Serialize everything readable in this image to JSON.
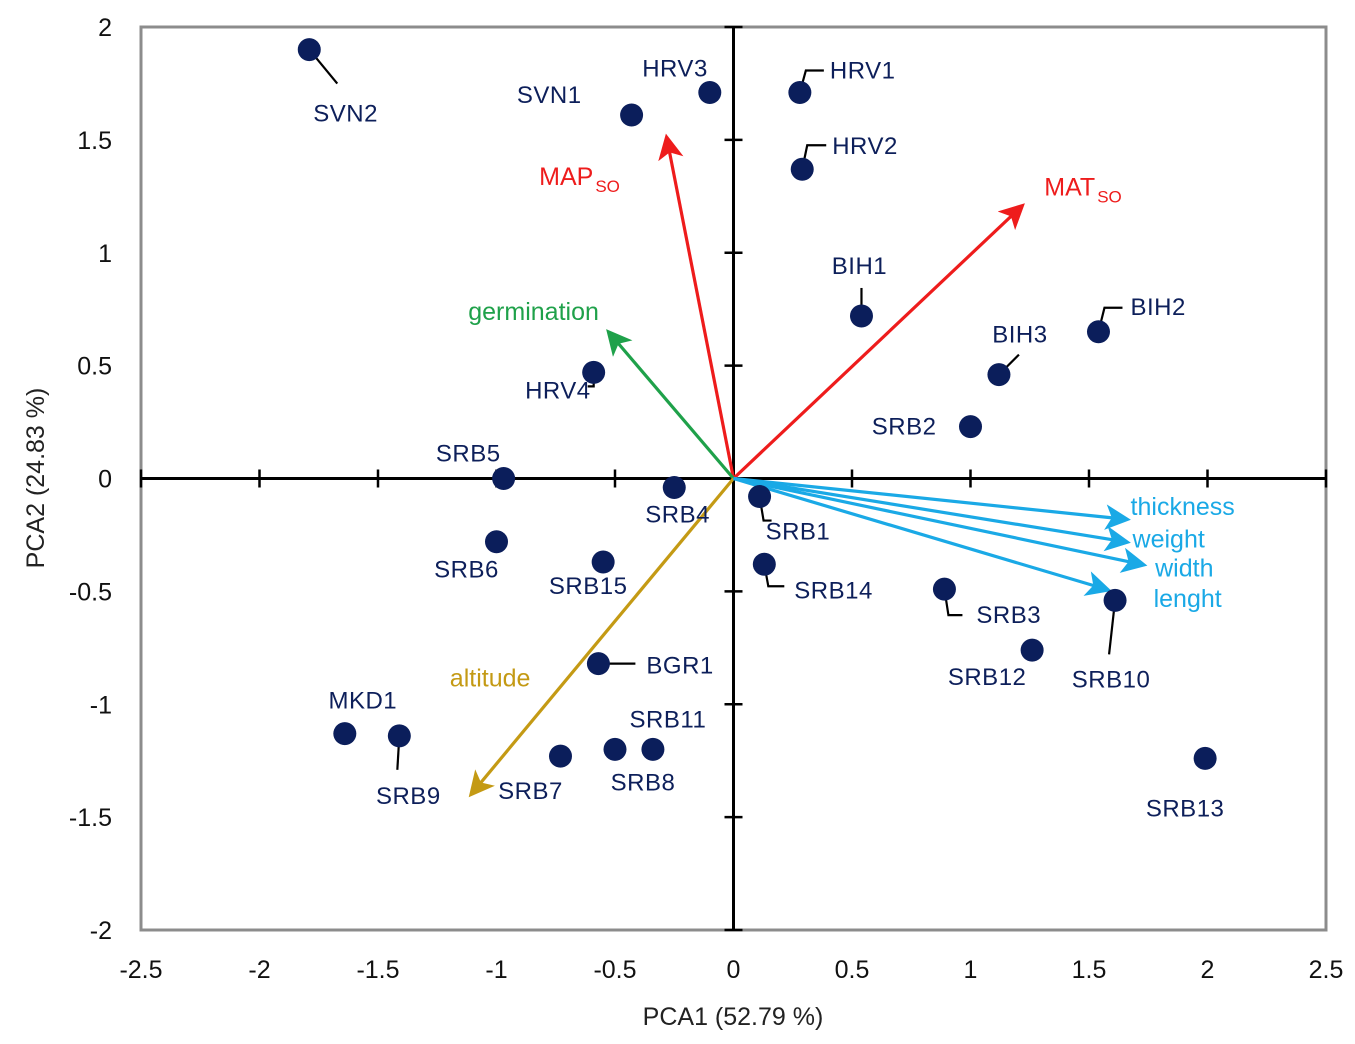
{
  "chart_data": {
    "type": "scatter",
    "subtype": "pca-biplot",
    "title": "",
    "xlabel": "PCA1 (52.79 %)",
    "ylabel": "PCA2 (24.83 %)",
    "xlim": [
      -2.5,
      2.5
    ],
    "ylim": [
      -2,
      2
    ],
    "xticks": [
      -2.5,
      -2,
      -1.5,
      -1,
      -0.5,
      0,
      0.5,
      1,
      1.5,
      2,
      2.5
    ],
    "yticks": [
      -2,
      -1.5,
      -1,
      -0.5,
      0,
      0.5,
      1,
      1.5,
      2
    ],
    "xtick_labels": [
      "-2.5",
      "-2",
      "-1.5",
      "-1",
      "-0.5",
      "0",
      "0.5",
      "1",
      "1.5",
      "2",
      "2.5"
    ],
    "ytick_labels": [
      "-2",
      "-1.5",
      "-1",
      "-0.5",
      "0",
      "0.5",
      "1",
      "1.5",
      "2"
    ],
    "grid": false,
    "colors": {
      "points": "#0b1e5b",
      "point_labels": "#0d1f5a",
      "frame": "#8c8c8c",
      "axes": "#000000",
      "climate_vectors": "#ee1c1c",
      "germination": "#1fa14a",
      "altitude": "#c49a14",
      "seed_traits": "#1aa9e6"
    },
    "points": [
      {
        "label": "SVN2",
        "x": -1.79,
        "y": 1.9
      },
      {
        "label": "SVN1",
        "x": -0.43,
        "y": 1.61
      },
      {
        "label": "HRV3",
        "x": -0.1,
        "y": 1.71
      },
      {
        "label": "HRV1",
        "x": 0.28,
        "y": 1.71
      },
      {
        "label": "HRV2",
        "x": 0.29,
        "y": 1.37
      },
      {
        "label": "BIH1",
        "x": 0.54,
        "y": 0.72
      },
      {
        "label": "BIH2",
        "x": 1.54,
        "y": 0.65
      },
      {
        "label": "BIH3",
        "x": 1.12,
        "y": 0.46
      },
      {
        "label": "SRB2",
        "x": 1.0,
        "y": 0.23
      },
      {
        "label": "HRV4",
        "x": -0.59,
        "y": 0.47
      },
      {
        "label": "SRB5",
        "x": -0.97,
        "y": 0.0
      },
      {
        "label": "SRB4",
        "x": -0.25,
        "y": -0.04
      },
      {
        "label": "SRB1",
        "x": 0.11,
        "y": -0.08
      },
      {
        "label": "SRB6",
        "x": -1.0,
        "y": -0.28
      },
      {
        "label": "SRB15",
        "x": -0.55,
        "y": -0.37
      },
      {
        "label": "SRB14",
        "x": 0.13,
        "y": -0.38
      },
      {
        "label": "SRB3",
        "x": 0.89,
        "y": -0.49
      },
      {
        "label": "SRB10",
        "x": 1.61,
        "y": -0.54
      },
      {
        "label": "SRB12",
        "x": 1.26,
        "y": -0.76
      },
      {
        "label": "BGR1",
        "x": -0.57,
        "y": -0.82
      },
      {
        "label": "MKD1",
        "x": -1.64,
        "y": -1.13
      },
      {
        "label": "SRB9",
        "x": -1.41,
        "y": -1.14
      },
      {
        "label": "SRB7",
        "x": -0.73,
        "y": -1.23
      },
      {
        "label": "SRB8",
        "x": -0.5,
        "y": -1.2
      },
      {
        "label": "SRB11",
        "x": -0.34,
        "y": -1.2
      },
      {
        "label": "SRB13",
        "x": 1.99,
        "y": -1.24
      }
    ],
    "vectors": [
      {
        "label": "MAP",
        "subscript": "SO",
        "x": -0.28,
        "y": 1.5,
        "color_key": "climate_vectors"
      },
      {
        "label": "MAT",
        "subscript": "SO",
        "x": 1.21,
        "y": 1.2,
        "color_key": "climate_vectors"
      },
      {
        "label": "germination",
        "subscript": "",
        "x": -0.52,
        "y": 0.64,
        "color_key": "germination"
      },
      {
        "label": "altitude",
        "subscript": "",
        "x": -1.1,
        "y": -1.39,
        "color_key": "altitude"
      },
      {
        "label": "thickness",
        "subscript": "",
        "x": 1.65,
        "y": -0.18,
        "color_key": "seed_traits"
      },
      {
        "label": "weight",
        "subscript": "",
        "x": 1.65,
        "y": -0.28,
        "color_key": "seed_traits"
      },
      {
        "label": "width",
        "subscript": "",
        "x": 1.72,
        "y": -0.38,
        "color_key": "seed_traits"
      },
      {
        "label": "lenght",
        "subscript": "",
        "x": 1.57,
        "y": -0.49,
        "color_key": "seed_traits"
      }
    ]
  }
}
